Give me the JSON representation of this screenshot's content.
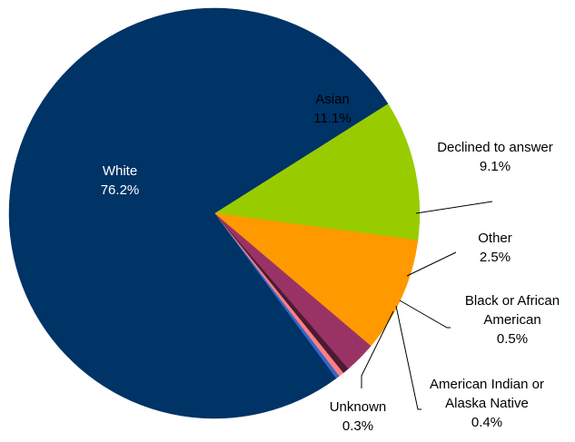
{
  "chart_data": {
    "type": "pie",
    "title": "",
    "start_angle_deg": 57.7,
    "direction": "clockwise",
    "slices": [
      {
        "label_lines": [
          "Asian"
        ],
        "pct_text": "11.1%",
        "value": 11.1,
        "color": "#99cc00",
        "label_color": "#000000",
        "label_inside": true
      },
      {
        "label_lines": [
          "Declined to answer"
        ],
        "pct_text": "9.1%",
        "value": 9.1,
        "color": "#ff9900",
        "label_color": "#000000",
        "label_inside": false
      },
      {
        "label_lines": [
          "Other"
        ],
        "pct_text": "2.5%",
        "value": 2.5,
        "color": "#993366",
        "label_color": "#000000",
        "label_inside": false
      },
      {
        "label_lines": [
          "Black or African",
          "American"
        ],
        "pct_text": "0.5%",
        "value": 0.5,
        "color": "#4d1a33",
        "label_color": "#000000",
        "label_inside": false
      },
      {
        "label_lines": [
          "American Indian or",
          "Alaska Native"
        ],
        "pct_text": "0.4%",
        "value": 0.4,
        "color": "#ff8080",
        "label_color": "#000000",
        "label_inside": false
      },
      {
        "label_lines": [
          "Unknown"
        ],
        "pct_text": "0.3%",
        "value": 0.3,
        "color": "#3366cc",
        "label_color": "#000000",
        "label_inside": false
      },
      {
        "label_lines": [
          "White"
        ],
        "pct_text": "76.2%",
        "value": 76.2,
        "color": "#003366",
        "label_color": "#ffffff",
        "label_inside": true
      }
    ]
  }
}
